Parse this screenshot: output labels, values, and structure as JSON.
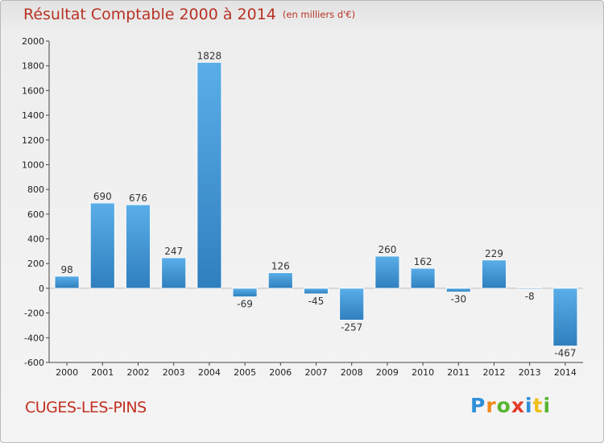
{
  "title": {
    "main": "Résultat Comptable 2000 à 2014",
    "unit": "(en milliers d'€)"
  },
  "commune": "CUGES-LES-PINS",
  "logo": {
    "text": "Proxiti",
    "letters": [
      {
        "ch": "P",
        "color": "#2d8fd8"
      },
      {
        "ch": "r",
        "color": "#f08a1c"
      },
      {
        "ch": "o",
        "color": "#57b530"
      },
      {
        "ch": "x",
        "color": "#e23c28"
      },
      {
        "ch": "i",
        "color": "#2d8fd8"
      },
      {
        "ch": "t",
        "color": "#f0c01c"
      },
      {
        "ch": "i",
        "color": "#57b530"
      }
    ]
  },
  "colors": {
    "bar_top": "#5aaee8",
    "bar_bottom": "#2f7fbe",
    "axis": "#444444",
    "grid": "#cfcfcf"
  },
  "chart_data": {
    "type": "bar",
    "categories": [
      "2000",
      "2001",
      "2002",
      "2003",
      "2004",
      "2005",
      "2006",
      "2007",
      "2008",
      "2009",
      "2010",
      "2011",
      "2012",
      "2013",
      "2014"
    ],
    "values": [
      98,
      690,
      676,
      247,
      1828,
      -69,
      126,
      -45,
      -257,
      260,
      162,
      -30,
      229,
      -8,
      -467
    ],
    "ylim": [
      -600,
      2000
    ],
    "yticks": [
      -600,
      -400,
      -200,
      0,
      200,
      400,
      600,
      800,
      1000,
      1200,
      1400,
      1600,
      1800,
      2000
    ],
    "grid": false,
    "data_labels": true
  }
}
